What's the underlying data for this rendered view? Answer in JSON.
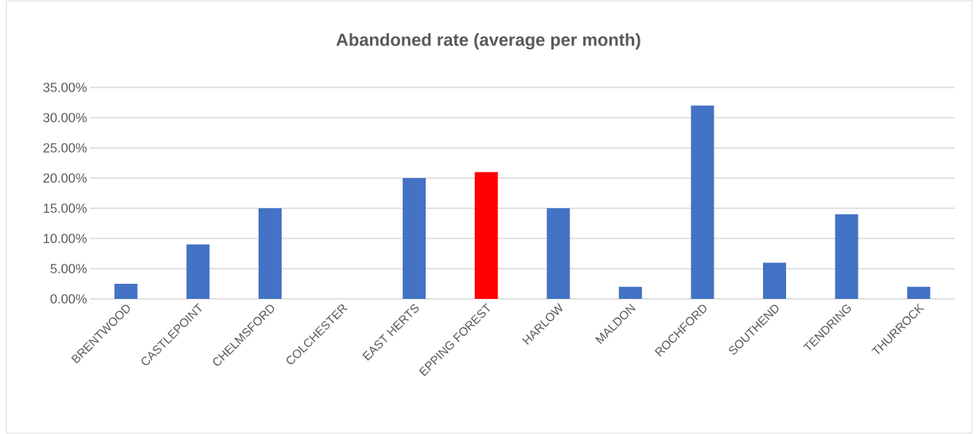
{
  "chart_data": {
    "type": "bar",
    "title": "Abandoned rate (average per month)",
    "categories": [
      "BRENTWOOD",
      "CASTLEPOINT",
      "CHELMSFORD",
      "COLCHESTER",
      "EAST HERTS",
      "EPPING FOREST",
      "HARLOW",
      "MALDON",
      "ROCHFORD",
      "SOUTHEND",
      "TENDRING",
      "THURROCK"
    ],
    "values": [
      2.5,
      9,
      15,
      0,
      20,
      21,
      15,
      2,
      32,
      6,
      14,
      2
    ],
    "colors": [
      "#4472c4",
      "#4472c4",
      "#4472c4",
      "#4472c4",
      "#4472c4",
      "#ff0000",
      "#4472c4",
      "#4472c4",
      "#4472c4",
      "#4472c4",
      "#4472c4",
      "#4472c4"
    ],
    "ylim": [
      0,
      35
    ],
    "yticks": [
      {
        "value": 0,
        "label": "0.00%"
      },
      {
        "value": 5,
        "label": "5.00%"
      },
      {
        "value": 10,
        "label": "10.00%"
      },
      {
        "value": 15,
        "label": "15.00%"
      },
      {
        "value": 20,
        "label": "20.00%"
      },
      {
        "value": 25,
        "label": "25.00%"
      },
      {
        "value": 30,
        "label": "30.00%"
      },
      {
        "value": 35,
        "label": "35.00%"
      }
    ],
    "grid": "y"
  }
}
